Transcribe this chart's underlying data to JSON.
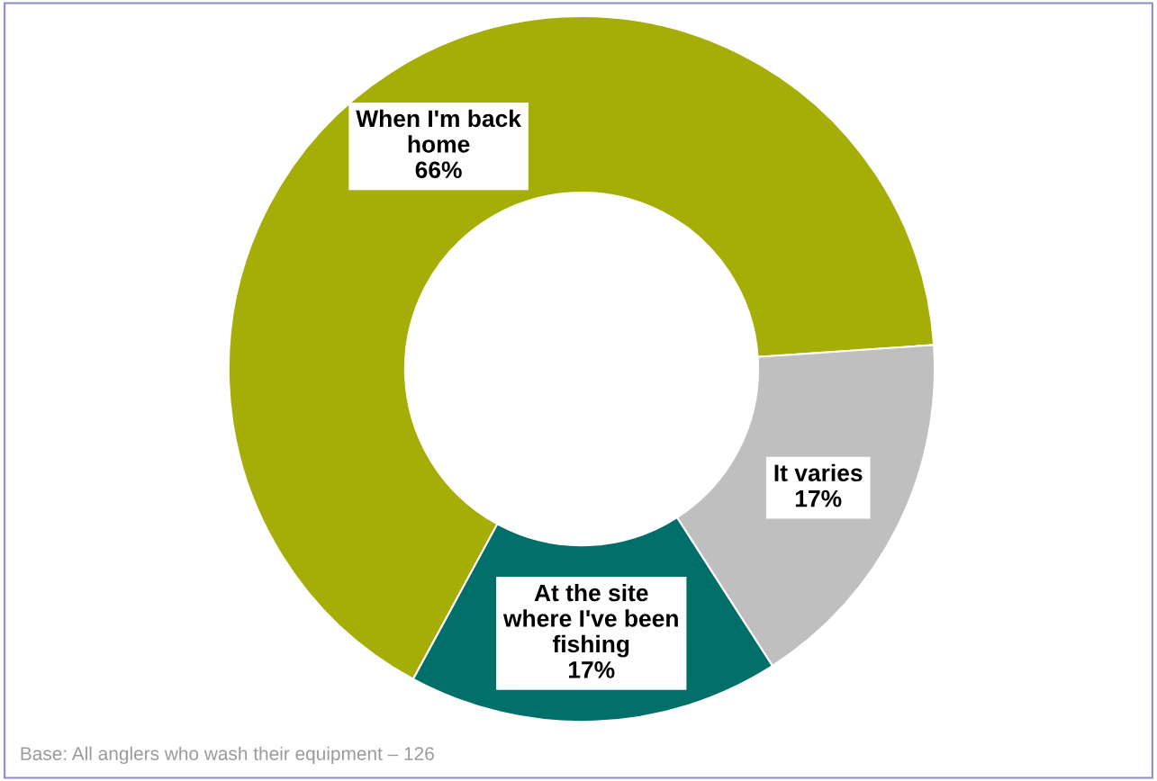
{
  "chart_data": {
    "type": "donut",
    "categories": [
      "When I'm back home",
      "It varies",
      "At the site where I've been fishing"
    ],
    "values": [
      66,
      17,
      17
    ],
    "colors": [
      "#a4ae06",
      "#bfbfbf",
      "#006f69"
    ],
    "value_labels": [
      "66%",
      "17%",
      "17%"
    ],
    "legend": false,
    "annotations": [
      "Base: All anglers who wash their equipment – 126"
    ]
  }
}
